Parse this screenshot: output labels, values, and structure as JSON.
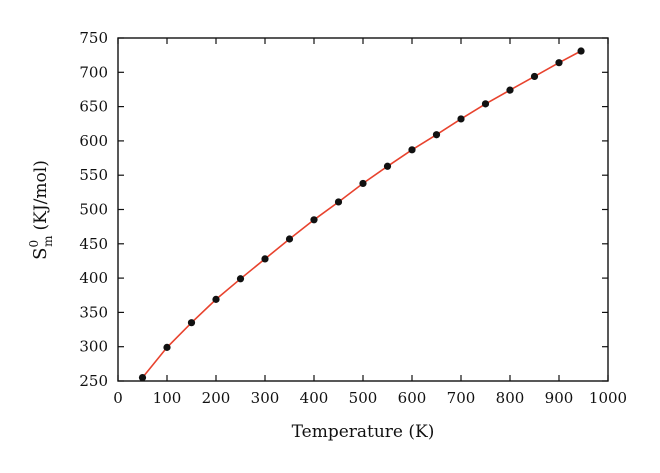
{
  "chart_data": {
    "type": "line",
    "xlabel": "Temperature (K)",
    "ylabel": {
      "base": "S",
      "sub": "m",
      "sup": "0",
      "unit": "(KJ/mol)"
    },
    "xlim": [
      0,
      1000
    ],
    "ylim": [
      250,
      750
    ],
    "xticks": [
      0,
      100,
      200,
      300,
      400,
      500,
      600,
      700,
      800,
      900,
      1000
    ],
    "yticks": [
      250,
      300,
      350,
      400,
      450,
      500,
      550,
      600,
      650,
      700,
      750
    ],
    "grid": false,
    "legend": "none",
    "series": [
      {
        "line_color": "#e8432e",
        "marker_color": "#111111",
        "x": [
          50,
          100,
          150,
          200,
          250,
          300,
          350,
          400,
          450,
          500,
          550,
          600,
          650,
          700,
          750,
          800,
          850,
          900,
          945
        ],
        "y": [
          255,
          299,
          335,
          369,
          399,
          428,
          457,
          485,
          511,
          538,
          563,
          587,
          609,
          632,
          654,
          674,
          694,
          714,
          731
        ]
      }
    ]
  }
}
